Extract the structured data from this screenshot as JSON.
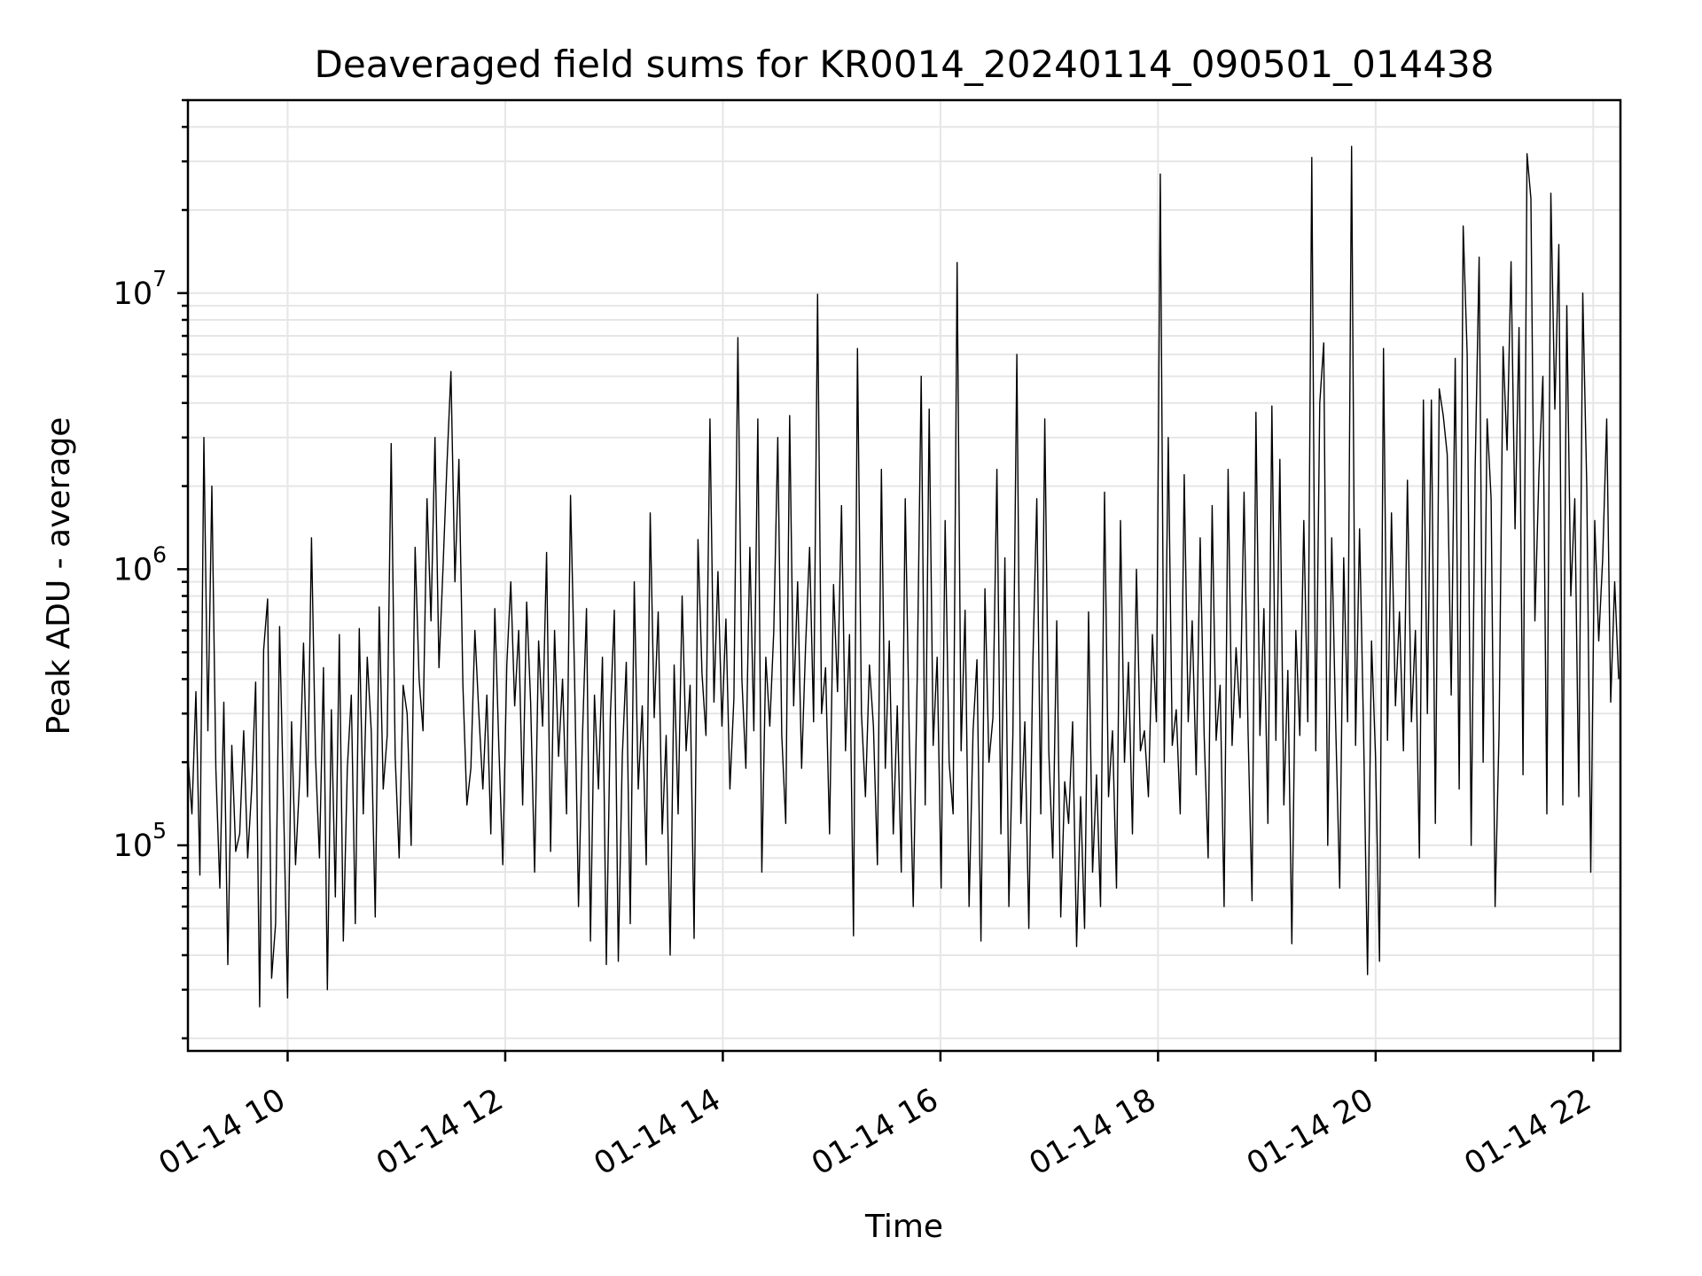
{
  "chart_data": {
    "type": "line",
    "title": "Deaveraged field sums for KR0014_20240114_090501_014438",
    "xlabel": "Time",
    "ylabel": "Peak ADU - average",
    "yscale": "log",
    "grid": true,
    "x_tick_labels": [
      "01-14 10",
      "01-14 12",
      "01-14 14",
      "01-14 16",
      "01-14 18",
      "01-14 20",
      "01-14 22"
    ],
    "y_tick_labels": [
      {
        "base": "10",
        "exp": "5",
        "value": 100000
      },
      {
        "base": "10",
        "exp": "6",
        "value": 1000000
      },
      {
        "base": "10",
        "exp": "7",
        "value": 10000000
      }
    ],
    "x_range": [
      "2024-01-14T09:05:01",
      "2024-01-14T22:15:00"
    ],
    "ylim": [
      18000,
      50000000
    ],
    "series": [
      {
        "color": "#000000",
        "x_start": "2024-01-14T09:05:01",
        "x_end": "2024-01-14T22:14:00",
        "values": [
          210000,
          130000,
          360000,
          78000,
          3000000,
          260000,
          2000000,
          190000,
          70000,
          330000,
          37000,
          230000,
          95000,
          110000,
          260000,
          90000,
          160000,
          390000,
          26000,
          510000,
          780000,
          33000,
          52000,
          620000,
          140000,
          28000,
          280000,
          85000,
          170000,
          540000,
          150000,
          1300000,
          210000,
          90000,
          440000,
          30000,
          310000,
          65000,
          580000,
          45000,
          190000,
          350000,
          52000,
          610000,
          130000,
          480000,
          260000,
          55000,
          730000,
          160000,
          250000,
          2850000,
          210000,
          90000,
          380000,
          300000,
          100000,
          1200000,
          400000,
          260000,
          1800000,
          650000,
          3000000,
          440000,
          1000000,
          2400000,
          5200000,
          900000,
          2500000,
          380000,
          140000,
          190000,
          600000,
          300000,
          160000,
          350000,
          110000,
          720000,
          230000,
          85000,
          450000,
          900000,
          320000,
          600000,
          140000,
          760000,
          330000,
          80000,
          550000,
          270000,
          1150000,
          95000,
          600000,
          210000,
          400000,
          130000,
          1850000,
          420000,
          60000,
          250000,
          720000,
          45000,
          350000,
          160000,
          480000,
          37000,
          290000,
          710000,
          38000,
          210000,
          460000,
          52000,
          900000,
          160000,
          320000,
          85000,
          1600000,
          290000,
          700000,
          110000,
          250000,
          40000,
          450000,
          130000,
          800000,
          220000,
          380000,
          46000,
          1280000,
          420000,
          250000,
          3500000,
          330000,
          980000,
          270000,
          660000,
          160000,
          340000,
          6900000,
          400000,
          190000,
          1200000,
          260000,
          3500000,
          80000,
          480000,
          270000,
          600000,
          3000000,
          250000,
          120000,
          3600000,
          320000,
          900000,
          190000,
          530000,
          1200000,
          280000,
          9900000,
          300000,
          440000,
          110000,
          880000,
          360000,
          1700000,
          220000,
          580000,
          47000,
          6300000,
          300000,
          150000,
          450000,
          270000,
          85000,
          2300000,
          190000,
          550000,
          110000,
          320000,
          80000,
          1800000,
          250000,
          60000,
          410000,
          5000000,
          140000,
          3800000,
          230000,
          480000,
          70000,
          1500000,
          200000,
          130000,
          12900000,
          220000,
          710000,
          60000,
          260000,
          470000,
          45000,
          850000,
          200000,
          290000,
          2300000,
          110000,
          1100000,
          60000,
          250000,
          6000000,
          120000,
          280000,
          50000,
          450000,
          1800000,
          130000,
          3500000,
          220000,
          90000,
          650000,
          55000,
          170000,
          120000,
          280000,
          43000,
          150000,
          50000,
          700000,
          80000,
          180000,
          60000,
          1900000,
          150000,
          260000,
          70000,
          1500000,
          200000,
          460000,
          110000,
          1000000,
          220000,
          260000,
          150000,
          580000,
          280000,
          27000000,
          200000,
          3000000,
          230000,
          310000,
          130000,
          2200000,
          280000,
          650000,
          180000,
          1300000,
          250000,
          90000,
          1700000,
          240000,
          380000,
          60000,
          2300000,
          230000,
          520000,
          290000,
          1900000,
          260000,
          63000,
          3700000,
          250000,
          720000,
          120000,
          3900000,
          240000,
          2500000,
          140000,
          430000,
          44000,
          600000,
          250000,
          1500000,
          280000,
          31000000,
          220000,
          4000000,
          6600000,
          100000,
          1300000,
          270000,
          70000,
          1100000,
          280000,
          34000000,
          230000,
          1400000,
          260000,
          34000,
          550000,
          210000,
          38000,
          6300000,
          240000,
          1600000,
          320000,
          700000,
          220000,
          2100000,
          280000,
          600000,
          90000,
          4100000,
          300000,
          4100000,
          120000,
          4500000,
          3600000,
          2600000,
          350000,
          5800000,
          160000,
          17500000,
          6000000,
          100000,
          2300000,
          13500000,
          200000,
          3500000,
          1800000,
          60000,
          260000,
          6400000,
          2700000,
          13000000,
          1400000,
          7500000,
          180000,
          32000000,
          22000000,
          650000,
          2200000,
          5000000,
          130000,
          23000000,
          3800000,
          15000000,
          140000,
          9000000,
          800000,
          1800000,
          150000,
          10000000,
          2000000,
          80000,
          1500000,
          550000,
          1100000,
          3500000,
          330000,
          900000,
          400000
        ]
      }
    ]
  }
}
